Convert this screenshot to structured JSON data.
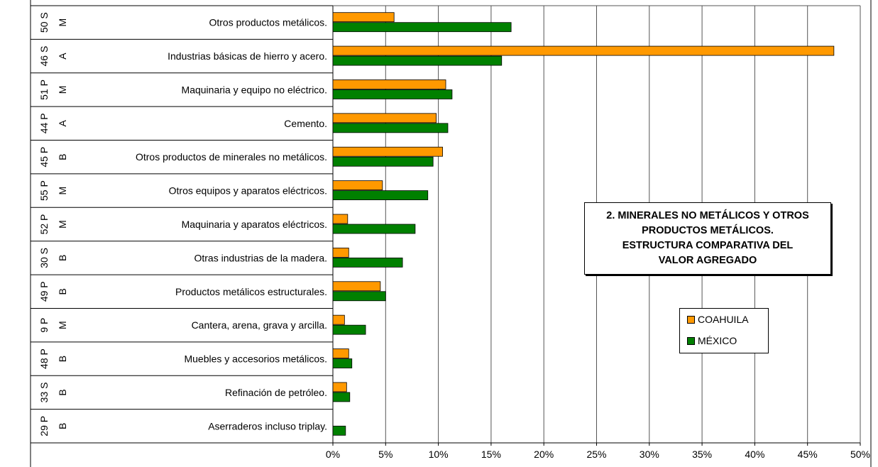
{
  "chart_data": {
    "type": "bar",
    "orientation": "horizontal",
    "title": "2. MINERALES NO METÁLICOS Y OTROS PRODUCTOS METÁLICOS. ESTRUCTURA COMPARATIVA DEL VALOR AGREGADO",
    "title_lines": [
      "2. MINERALES NO METÁLICOS Y OTROS",
      "PRODUCTOS METÁLICOS.",
      "ESTRUCTURA COMPARATIVA DEL",
      "VALOR AGREGADO"
    ],
    "categories": [
      {
        "code": "50 S",
        "letter": "M",
        "label": "Otros productos metálicos."
      },
      {
        "code": "46 S",
        "letter": "A",
        "label": "Industrias básicas de hierro y acero."
      },
      {
        "code": "51 P",
        "letter": "M",
        "label": "Maquinaria y equipo no eléctrico."
      },
      {
        "code": "44 P",
        "letter": "A",
        "label": "Cemento."
      },
      {
        "code": "45 P",
        "letter": "B",
        "label": "Otros productos de minerales no metálicos."
      },
      {
        "code": "55 P",
        "letter": "M",
        "label": "Otros equipos y aparatos eléctricos."
      },
      {
        "code": "52 P",
        "letter": "M",
        "label": "Maquinaria y aparatos eléctricos."
      },
      {
        "code": "30 S",
        "letter": "B",
        "label": "Otras industrias de la madera."
      },
      {
        "code": "49 P",
        "letter": "B",
        "label": "Productos metálicos estructurales."
      },
      {
        "code": "9 P",
        "letter": "M",
        "label": "Cantera, arena, grava y arcilla."
      },
      {
        "code": "48 P",
        "letter": "B",
        "label": "Muebles y accesorios metálicos."
      },
      {
        "code": "33 S",
        "letter": "B",
        "label": "Refinación de petróleo."
      },
      {
        "code": "29 P",
        "letter": "B",
        "label": "Aserraderos incluso triplay."
      }
    ],
    "series": [
      {
        "name": "COAHUILA",
        "color": "#ff9900",
        "values": [
          5.8,
          47.5,
          10.7,
          9.8,
          10.4,
          4.7,
          1.4,
          1.5,
          4.5,
          1.1,
          1.5,
          1.3,
          0
        ]
      },
      {
        "name": "MÉXICO",
        "color": "#008000",
        "values": [
          16.9,
          16.0,
          11.3,
          10.9,
          9.5,
          9.0,
          7.8,
          6.6,
          5.0,
          3.1,
          1.8,
          1.6,
          1.2
        ]
      }
    ],
    "xlim": [
      0,
      50
    ],
    "xticks": [
      "0%",
      "5%",
      "10%",
      "15%",
      "20%",
      "25%",
      "30%",
      "35%",
      "40%",
      "45%",
      "50%"
    ],
    "grid": true,
    "legend_position": "right"
  }
}
